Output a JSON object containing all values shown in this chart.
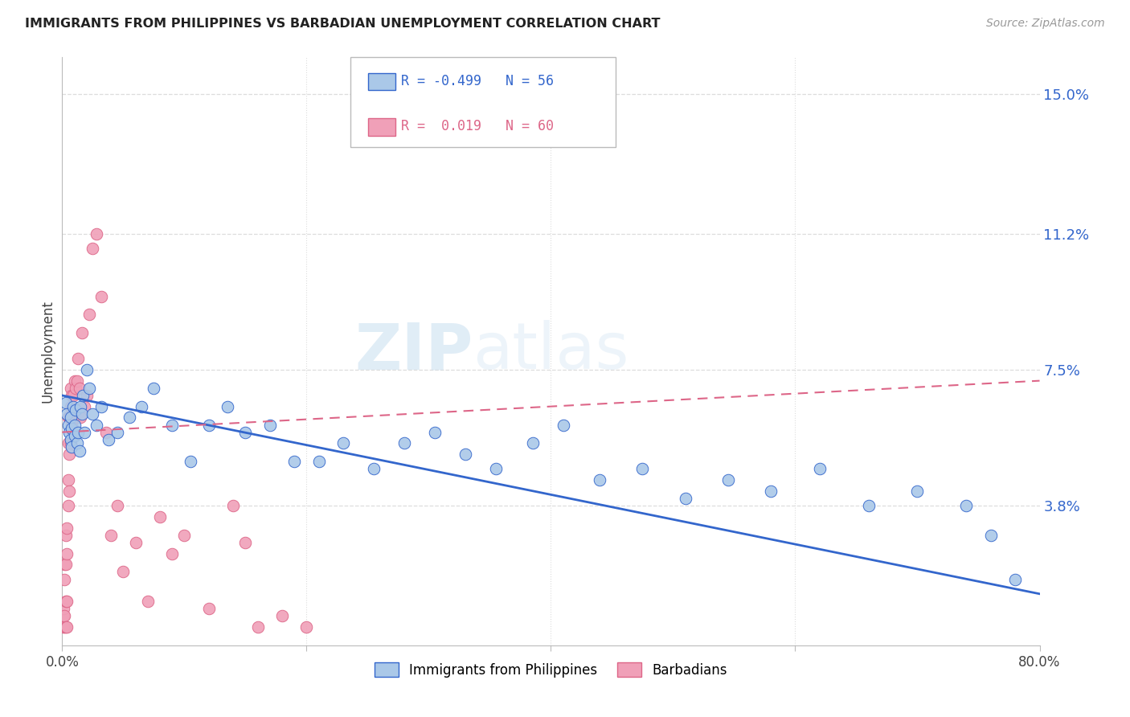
{
  "title": "IMMIGRANTS FROM PHILIPPINES VS BARBADIAN UNEMPLOYMENT CORRELATION CHART",
  "source": "Source: ZipAtlas.com",
  "ylabel": "Unemployment",
  "yticks": [
    0.0,
    0.038,
    0.075,
    0.112,
    0.15
  ],
  "ytick_labels": [
    "",
    "3.8%",
    "7.5%",
    "11.2%",
    "15.0%"
  ],
  "xlim": [
    0.0,
    0.8
  ],
  "ylim": [
    0.0,
    0.16
  ],
  "watermark_part1": "ZIP",
  "watermark_part2": "atlas",
  "blue_color": "#aac8e8",
  "pink_color": "#f0a0b8",
  "line_blue": "#3366cc",
  "line_pink": "#dd6688",
  "scatter_blue_x": [
    0.003,
    0.004,
    0.005,
    0.006,
    0.007,
    0.007,
    0.008,
    0.008,
    0.009,
    0.01,
    0.01,
    0.011,
    0.012,
    0.013,
    0.014,
    0.015,
    0.016,
    0.017,
    0.018,
    0.02,
    0.022,
    0.025,
    0.028,
    0.032,
    0.038,
    0.045,
    0.055,
    0.065,
    0.075,
    0.09,
    0.105,
    0.12,
    0.135,
    0.15,
    0.17,
    0.19,
    0.21,
    0.23,
    0.255,
    0.28,
    0.305,
    0.33,
    0.355,
    0.385,
    0.41,
    0.44,
    0.475,
    0.51,
    0.545,
    0.58,
    0.62,
    0.66,
    0.7,
    0.74,
    0.76,
    0.78
  ],
  "scatter_blue_y": [
    0.066,
    0.063,
    0.06,
    0.058,
    0.062,
    0.056,
    0.059,
    0.054,
    0.065,
    0.057,
    0.06,
    0.064,
    0.055,
    0.058,
    0.053,
    0.065,
    0.063,
    0.068,
    0.058,
    0.075,
    0.07,
    0.063,
    0.06,
    0.065,
    0.056,
    0.058,
    0.062,
    0.065,
    0.07,
    0.06,
    0.05,
    0.06,
    0.065,
    0.058,
    0.06,
    0.05,
    0.05,
    0.055,
    0.048,
    0.055,
    0.058,
    0.052,
    0.048,
    0.055,
    0.06,
    0.045,
    0.048,
    0.04,
    0.045,
    0.042,
    0.048,
    0.038,
    0.042,
    0.038,
    0.03,
    0.018
  ],
  "scatter_pink_x": [
    0.001,
    0.001,
    0.001,
    0.002,
    0.002,
    0.002,
    0.002,
    0.003,
    0.003,
    0.003,
    0.003,
    0.004,
    0.004,
    0.004,
    0.004,
    0.005,
    0.005,
    0.005,
    0.005,
    0.006,
    0.006,
    0.006,
    0.007,
    0.007,
    0.007,
    0.008,
    0.008,
    0.009,
    0.009,
    0.01,
    0.01,
    0.011,
    0.011,
    0.012,
    0.012,
    0.013,
    0.014,
    0.015,
    0.016,
    0.018,
    0.02,
    0.022,
    0.025,
    0.028,
    0.032,
    0.036,
    0.04,
    0.045,
    0.05,
    0.06,
    0.07,
    0.08,
    0.09,
    0.1,
    0.12,
    0.14,
    0.15,
    0.16,
    0.18,
    0.2
  ],
  "scatter_pink_y": [
    0.005,
    0.008,
    0.01,
    0.005,
    0.008,
    0.018,
    0.022,
    0.005,
    0.012,
    0.022,
    0.03,
    0.005,
    0.012,
    0.025,
    0.032,
    0.038,
    0.045,
    0.055,
    0.062,
    0.042,
    0.052,
    0.062,
    0.055,
    0.065,
    0.07,
    0.06,
    0.068,
    0.058,
    0.068,
    0.062,
    0.072,
    0.062,
    0.07,
    0.063,
    0.072,
    0.078,
    0.07,
    0.062,
    0.085,
    0.065,
    0.068,
    0.09,
    0.108,
    0.112,
    0.095,
    0.058,
    0.03,
    0.038,
    0.02,
    0.028,
    0.012,
    0.035,
    0.025,
    0.03,
    0.01,
    0.038,
    0.028,
    0.005,
    0.008,
    0.005
  ],
  "blue_line_x": [
    0.0,
    0.8
  ],
  "blue_line_y": [
    0.068,
    0.014
  ],
  "pink_line_x": [
    0.0,
    0.8
  ],
  "pink_line_y": [
    0.058,
    0.072
  ],
  "title_color": "#222222",
  "source_color": "#999999",
  "tick_color": "#3366cc",
  "ylabel_color": "#444444",
  "grid_color": "#dddddd",
  "spine_color": "#bbbbbb"
}
